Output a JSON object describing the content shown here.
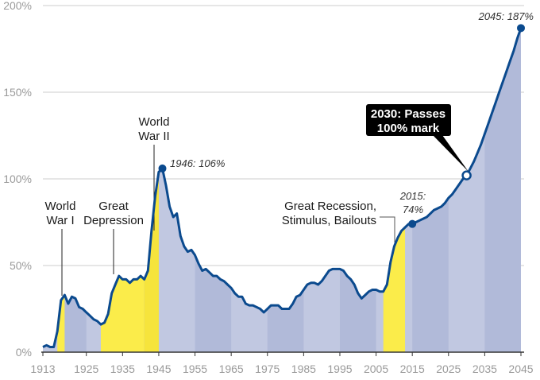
{
  "chart_data": {
    "type": "area",
    "title": "",
    "xlabel": "",
    "ylabel": "",
    "xlim": [
      1913,
      2045
    ],
    "ylim": [
      0,
      200
    ],
    "grid": true,
    "x_ticks": [
      "1913",
      "1925",
      "1935",
      "1945",
      "1955",
      "1965",
      "1975",
      "1985",
      "1995",
      "2005",
      "2015",
      "2025",
      "2035",
      "2045"
    ],
    "y_ticks": [
      "0%",
      "50%",
      "100%",
      "150%",
      "200%"
    ],
    "y_tick_values": [
      0,
      50,
      100,
      150,
      200
    ],
    "x_tick_values": [
      1913,
      1925,
      1935,
      1945,
      1955,
      1965,
      1975,
      1985,
      1995,
      2005,
      2015,
      2025,
      2035,
      2045
    ],
    "start_year": 1913,
    "values": [
      3,
      4,
      3,
      3,
      12,
      30,
      33,
      28,
      32,
      31,
      26,
      25,
      23,
      21,
      19,
      18,
      16,
      17,
      22,
      34,
      39,
      44,
      42,
      42,
      40,
      42,
      42,
      44,
      42,
      47,
      70,
      90,
      104,
      106,
      96,
      84,
      78,
      80,
      67,
      61,
      58,
      59,
      56,
      51,
      47,
      48,
      46,
      44,
      44,
      42,
      41,
      39,
      37,
      34,
      32,
      32,
      28,
      27,
      27,
      26,
      25,
      23,
      25,
      27,
      27,
      27,
      25,
      25,
      25,
      28,
      32,
      33,
      36,
      39,
      40,
      40,
      39,
      41,
      44,
      47,
      48,
      48,
      48,
      47,
      44,
      42,
      39,
      34,
      31,
      33,
      35,
      36,
      36,
      35,
      35,
      39,
      52,
      61,
      66,
      70,
      72,
      74,
      74,
      75,
      76,
      77,
      78,
      80,
      82,
      83,
      84,
      86,
      89,
      91,
      94,
      97,
      100,
      102,
      106,
      110,
      115,
      120,
      126,
      132,
      138,
      144,
      150,
      156,
      162,
      168,
      174,
      181,
      187
    ],
    "highlight_periods": [
      [
        1917,
        1919
      ],
      [
        1929,
        1941
      ],
      [
        1941,
        1945
      ],
      [
        2007,
        2013
      ]
    ],
    "colors": {
      "line": "#0b4a8e",
      "fill": "#c1c8e1",
      "fill_alt": "#b1bad9",
      "highlight": "#fbec4a",
      "highlight_alt": "#f6e43c",
      "grid": "#dddddd",
      "axis": "#333333"
    },
    "annotations": {
      "ww1": [
        "World",
        "War I"
      ],
      "depression": [
        "Great",
        "Depression"
      ],
      "ww2": [
        "World",
        "War II"
      ],
      "peak_1946": "1946: 106%",
      "recession": [
        "Great Recession,",
        "Stimulus, Bailouts"
      ],
      "point_2015": [
        "2015:",
        "74%"
      ],
      "callout_2030": [
        "2030: Passes",
        "100% mark"
      ],
      "end_2045": "2045: 187%"
    },
    "markers": [
      {
        "year": 1946,
        "value": 106
      },
      {
        "year": 2015,
        "value": 74
      },
      {
        "year": 2030,
        "value": 102
      },
      {
        "year": 2045,
        "value": 187
      }
    ]
  }
}
